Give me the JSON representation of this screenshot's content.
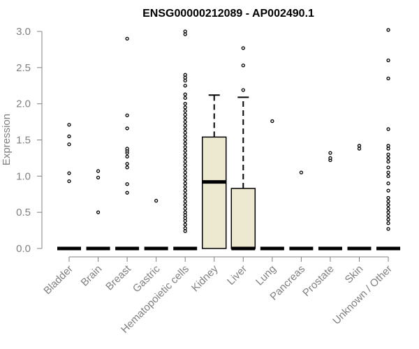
{
  "chart_data": {
    "type": "boxplot",
    "title": "ENSG00000212089 - AP002490.1",
    "ylabel": "Expression",
    "xlabel": "",
    "ylim": [
      0,
      3.0
    ],
    "yticks": [
      "0.0",
      "0.5",
      "1.0",
      "1.5",
      "2.0",
      "2.5",
      "3.0"
    ],
    "grid": false,
    "box_color": "#ede8d0",
    "categories": [
      "Bladder",
      "Brain",
      "Breast",
      "Gastric",
      "Hematopoietic cells",
      "Kidney",
      "Liver",
      "Lung",
      "Pancreas",
      "Prostate",
      "Skin",
      "Unknown / Other"
    ],
    "boxes": [
      {
        "name": "Bladder",
        "q1": 0,
        "median": 0,
        "q3": 0,
        "whisker_low": 0,
        "whisker_high": 0,
        "outliers": [
          0.93,
          1.04,
          1.44,
          1.55,
          1.71
        ]
      },
      {
        "name": "Brain",
        "q1": 0,
        "median": 0,
        "q3": 0,
        "whisker_low": 0,
        "whisker_high": 0,
        "outliers": [
          0.5,
          0.98,
          1.07
        ]
      },
      {
        "name": "Breast",
        "q1": 0,
        "median": 0,
        "q3": 0,
        "whisker_low": 0,
        "whisker_high": 0,
        "outliers": [
          0.77,
          0.89,
          1.12,
          1.17,
          1.27,
          1.32,
          1.35,
          1.38,
          1.66,
          1.84,
          2.9
        ]
      },
      {
        "name": "Gastric",
        "q1": 0,
        "median": 0,
        "q3": 0,
        "whisker_low": 0,
        "whisker_high": 0,
        "outliers": [
          0.66
        ]
      },
      {
        "name": "Hematopoietic cells",
        "q1": 0,
        "median": 0,
        "q3": 0,
        "whisker_low": 0,
        "whisker_high": 0,
        "outliers": [
          0.24,
          0.28,
          0.33,
          0.38,
          0.42,
          0.46,
          0.5,
          0.55,
          0.6,
          0.65,
          0.7,
          0.75,
          0.8,
          0.85,
          0.9,
          0.95,
          1.0,
          1.05,
          1.1,
          1.15,
          1.2,
          1.25,
          1.3,
          1.35,
          1.4,
          1.45,
          1.5,
          1.55,
          1.6,
          1.65,
          1.7,
          1.75,
          1.8,
          1.85,
          1.9,
          1.95,
          2.0,
          2.08,
          2.13,
          2.25,
          2.32,
          2.36,
          2.4,
          2.96,
          3.0
        ]
      },
      {
        "name": "Kidney",
        "q1": 0,
        "median": 0.92,
        "q3": 1.54,
        "whisker_low": 0,
        "whisker_high": 2.12,
        "outliers": []
      },
      {
        "name": "Liver",
        "q1": 0,
        "median": 0,
        "q3": 0.83,
        "whisker_low": 0,
        "whisker_high": 2.09,
        "outliers": [
          2.19,
          2.53,
          2.77
        ]
      },
      {
        "name": "Lung",
        "q1": 0,
        "median": 0,
        "q3": 0,
        "whisker_low": 0,
        "whisker_high": 0,
        "outliers": [
          1.76
        ]
      },
      {
        "name": "Pancreas",
        "q1": 0,
        "median": 0,
        "q3": 0,
        "whisker_low": 0,
        "whisker_high": 0,
        "outliers": [
          1.05
        ]
      },
      {
        "name": "Prostate",
        "q1": 0,
        "median": 0,
        "q3": 0,
        "whisker_low": 0,
        "whisker_high": 0,
        "outliers": [
          1.22,
          1.25,
          1.32
        ]
      },
      {
        "name": "Skin",
        "q1": 0,
        "median": 0,
        "q3": 0,
        "whisker_low": 0,
        "whisker_high": 0,
        "outliers": [
          1.38,
          1.42
        ]
      },
      {
        "name": "Unknown / Other",
        "q1": 0,
        "median": 0,
        "q3": 0,
        "whisker_low": 0,
        "whisker_high": 0,
        "outliers": [
          0.27,
          0.35,
          0.4,
          0.45,
          0.5,
          0.55,
          0.6,
          0.65,
          0.7,
          0.8,
          0.9,
          1.0,
          1.05,
          1.12,
          1.2,
          1.25,
          1.3,
          1.38,
          1.42,
          1.65,
          2.35,
          2.6,
          3.02
        ]
      }
    ]
  }
}
